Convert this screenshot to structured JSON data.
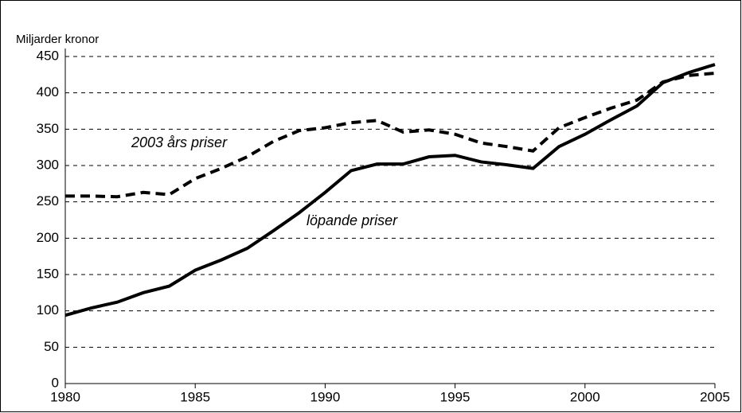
{
  "chart_data": {
    "type": "line",
    "y_label": "Miljarder kronor",
    "x": [
      1980,
      1981,
      1982,
      1983,
      1984,
      1985,
      1986,
      1987,
      1988,
      1989,
      1990,
      1991,
      1992,
      1993,
      1994,
      1995,
      1996,
      1997,
      1998,
      1999,
      2000,
      2001,
      2002,
      2003,
      2004,
      2005
    ],
    "series": [
      {
        "name": "löpande priser",
        "color": "#000000",
        "dash": false,
        "values": [
          94,
          104,
          112,
          125,
          134,
          156,
          170,
          186,
          210,
          235,
          263,
          293,
          302,
          302,
          312,
          314,
          305,
          301,
          296,
          326,
          343,
          363,
          382,
          414,
          428,
          439
        ]
      },
      {
        "name": "2003 års priser",
        "color": "#000000",
        "dash": true,
        "values": [
          258,
          258,
          257,
          263,
          260,
          282,
          296,
          312,
          333,
          348,
          352,
          359,
          362,
          346,
          349,
          343,
          331,
          326,
          320,
          352,
          366,
          379,
          390,
          415,
          424,
          427
        ]
      }
    ],
    "xlim": [
      1980,
      2005
    ],
    "xticks": [
      1980,
      1985,
      1990,
      1995,
      2000,
      2005
    ],
    "ylim": [
      0,
      450
    ],
    "yticks": [
      0,
      50,
      100,
      150,
      200,
      250,
      300,
      350,
      400,
      450
    ],
    "grid": true
  }
}
